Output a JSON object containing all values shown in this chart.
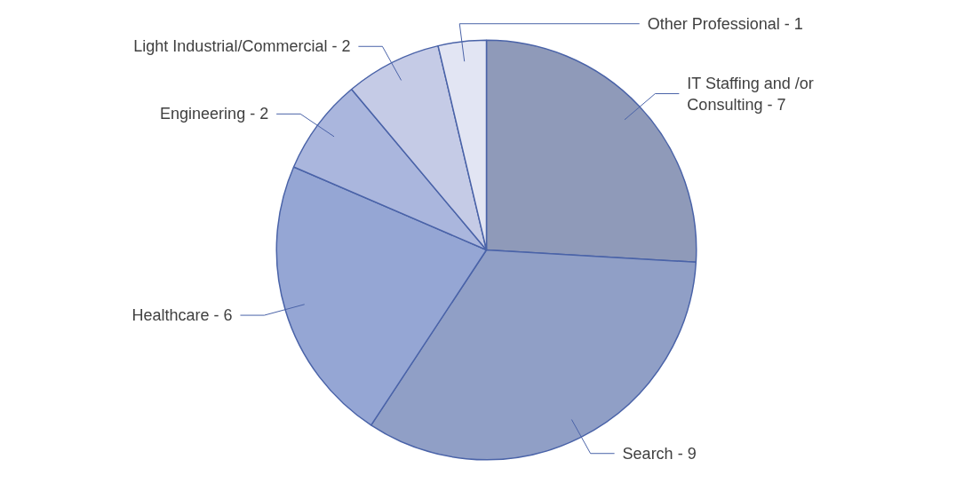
{
  "chart_data": {
    "type": "pie",
    "categories": [
      "IT Staffing and /or Consulting - 7",
      "Search - 9",
      "Healthcare - 6",
      "Engineering - 2",
      "Light Industrial/Commercial - 2",
      "Other Professional - 1"
    ],
    "values": [
      25.93,
      33.33,
      22.22,
      7.41,
      7.41,
      3.7
    ],
    "colors": [
      "#8f9ab9",
      "#909fc6",
      "#95a6d4",
      "#aab6dd",
      "#c5cbe6",
      "#e2e5f3"
    ]
  }
}
